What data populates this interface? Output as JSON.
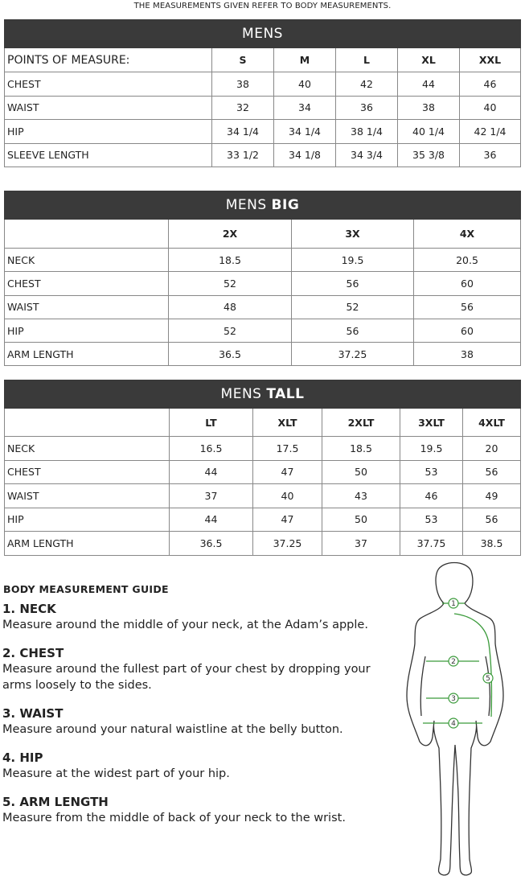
{
  "note": "THE MEASUREMENTS GIVEN REFER TO BODY MEASUREMENTS.",
  "mens": {
    "title": "MENS",
    "title_bold": "",
    "header": [
      "POINTS OF MEASURE:",
      "S",
      "M",
      "L",
      "XL",
      "XXL"
    ],
    "rows": [
      [
        "CHEST",
        "38",
        "40",
        "42",
        "44",
        "46"
      ],
      [
        "WAIST",
        "32",
        "34",
        "36",
        "38",
        "40"
      ],
      [
        "HIP",
        "34 1/4",
        "34 1/4",
        "38 1/4",
        "40 1/4",
        "42 1/4"
      ],
      [
        "SLEEVE LENGTH",
        "33 1/2",
        "34 1/8",
        "34 3/4",
        "35 3/8",
        "36"
      ]
    ]
  },
  "big": {
    "title": "MENS",
    "title_bold": "BIG",
    "header": [
      "",
      "2X",
      "3X",
      "4X"
    ],
    "rows": [
      [
        "NECK",
        "18.5",
        "19.5",
        "20.5"
      ],
      [
        "CHEST",
        "52",
        "56",
        "60"
      ],
      [
        "WAIST",
        "48",
        "52",
        "56"
      ],
      [
        "HIP",
        "52",
        "56",
        "60"
      ],
      [
        "ARM LENGTH",
        "36.5",
        "37.25",
        "38"
      ]
    ]
  },
  "tall": {
    "title": "MENS",
    "title_bold": "TALL",
    "header": [
      "",
      "LT",
      "XLT",
      "2XLT",
      "3XLT",
      "4XLT"
    ],
    "rows": [
      [
        "NECK",
        "16.5",
        "17.5",
        "18.5",
        "19.5",
        "20"
      ],
      [
        "CHEST",
        "44",
        "47",
        "50",
        "53",
        "56"
      ],
      [
        "WAIST",
        "37",
        "40",
        "43",
        "46",
        "49"
      ],
      [
        "HIP",
        "44",
        "47",
        "50",
        "53",
        "56"
      ],
      [
        "ARM LENGTH",
        "36.5",
        "37.25",
        "37",
        "37.75",
        "38.5"
      ]
    ]
  },
  "guide": {
    "title": "BODY MEASUREMENT GUIDE",
    "items": [
      {
        "title": "1. NECK",
        "text": "Measure around the middle of your neck, at the Adam’s apple."
      },
      {
        "title": "2. CHEST",
        "text": "Measure around the fullest part of your chest by dropping your arms loosely to the sides."
      },
      {
        "title": "3. WAIST",
        "text": "Measure around your natural waistline at the belly button."
      },
      {
        "title": "4. HIP",
        "text": "Measure at the widest part of your hip."
      },
      {
        "title": "5. ARM LENGTH",
        "text": "Measure from the middle of back of your neck to the wrist."
      }
    ]
  },
  "figure": {
    "markers": [
      "1",
      "2",
      "3",
      "4",
      "5"
    ],
    "accent": "#3a9a3a"
  }
}
